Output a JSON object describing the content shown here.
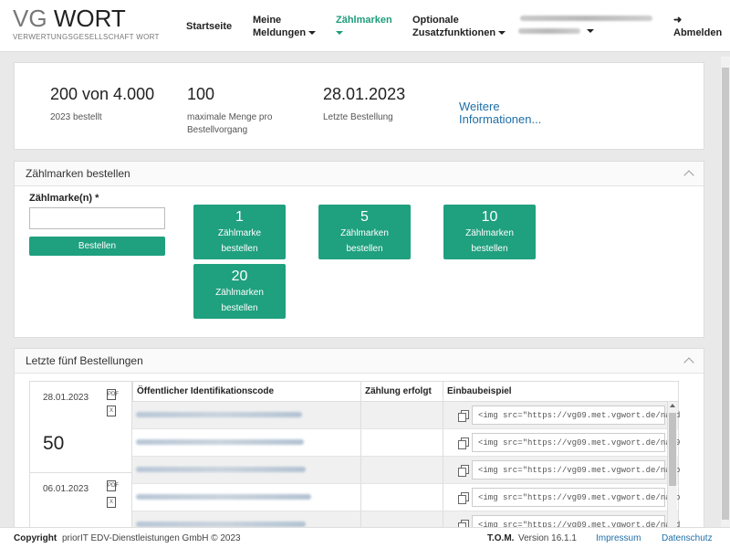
{
  "header": {
    "logo_vg": "VG",
    "logo_wort": "WORT",
    "logo_sub": "VERWERTUNGSGESELLSCHAFT WORT",
    "nav": {
      "startseite": "Startseite",
      "meine_line1": "Meine",
      "meine_line2": "Meldungen",
      "zaehlmarken": "Zählmarken",
      "optionale_line1": "Optionale",
      "optionale_line2": "Zusatzfunktionen",
      "abmelden": "Abmelden"
    }
  },
  "stats": {
    "ordered_value": "200 von 4.000",
    "ordered_label": "2023 bestellt",
    "max_value": "100",
    "max_label_line1": "maximale Menge pro",
    "max_label_line2": "Bestellvorgang",
    "last_value": "28.01.2023",
    "last_label": "Letzte Bestellung",
    "more_line1": "Weitere",
    "more_line2": "Informationen..."
  },
  "order_panel": {
    "title": "Zählmarken bestellen",
    "field_label": "Zählmarke(n)  *",
    "input_value": "",
    "order_button": "Bestellen",
    "quick_buttons": [
      {
        "num": "1",
        "line1": "Zählmarke",
        "line2": "bestellen"
      },
      {
        "num": "5",
        "line1": "Zählmarken",
        "line2": "bestellen"
      },
      {
        "num": "10",
        "line1": "Zählmarken",
        "line2": "bestellen"
      },
      {
        "num": "20",
        "line1": "Zählmarken",
        "line2": "bestellen"
      }
    ]
  },
  "recent_panel": {
    "title": "Letzte fünf Bestellungen",
    "columns": [
      "Öffentlicher Identifikationscode",
      "Zählung erfolgt",
      "Einbaubeispiel"
    ],
    "orders": [
      {
        "date": "28.01.2023",
        "count": "50"
      },
      {
        "date": "06.01.2023",
        "count": ""
      }
    ],
    "embed_snippets": [
      "<img src=\"https://vg09.met.vgwort.de/na/d",
      "<img src=\"https://vg09.met.vgwort.de/na/9",
      "<img src=\"https://vg09.met.vgwort.de/na/b",
      "<img src=\"https://vg09.met.vgwort.de/na/b",
      "<img src=\"https://vg09.met.vgwort.de/na/d"
    ]
  },
  "footer": {
    "copyright_bold": "Copyright",
    "copyright_text": "priorIT EDV-Dienstleistungen GmbH © 2023",
    "version_bold": "T.O.M.",
    "version_text": "Version 16.1.1",
    "impressum": "Impressum",
    "datenschutz": "Datenschutz"
  },
  "colors": {
    "accent_green": "#1fa07f",
    "link_blue": "#1f6fa8"
  }
}
